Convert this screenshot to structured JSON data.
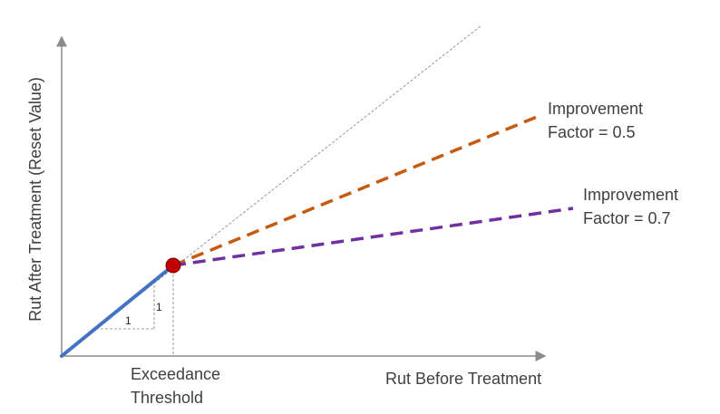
{
  "diagram": {
    "y_axis_label": "Rut After Treatment (Reset Value)",
    "x_axis_label": "Rut Before Treatment",
    "threshold_label_line1": "Exceedance",
    "threshold_label_line2": "Threshold",
    "slope_run_label": "1",
    "slope_rise_label": "1",
    "factor_05_line1": "Improvement",
    "factor_05_line2": "Factor = 0.5",
    "factor_07_line1": "Improvement",
    "factor_07_line2": "Factor = 0.7"
  },
  "colors": {
    "axis": "#8c8c8c",
    "baseline_segment": "#4472c4",
    "factor_05_line": "#c55a11",
    "factor_07_line": "#7030a0",
    "threshold_point": "#c00000",
    "reference_line": "#808080",
    "text": "#404040"
  }
}
